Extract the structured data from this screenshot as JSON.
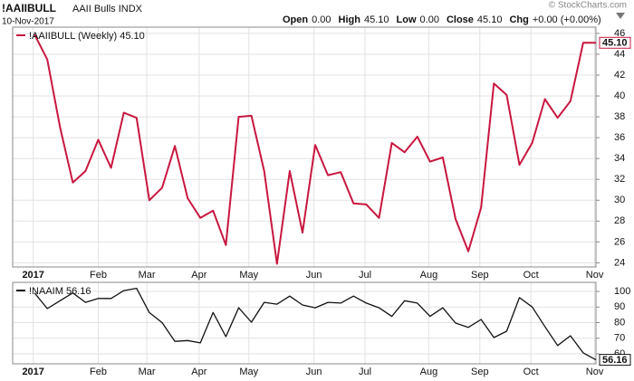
{
  "header": {
    "symbol": "!AAIIBULL",
    "name": "AAII Bulls INDX",
    "date": "10-Nov-2017",
    "watermark": "© StockCharts.com",
    "quote": [
      [
        "Open",
        "0.00"
      ],
      [
        "High",
        "45.10"
      ],
      [
        "Low",
        "0.00"
      ],
      [
        "Close",
        "45.10"
      ],
      [
        "Chg",
        "+0.00 (+0.00%)"
      ]
    ]
  },
  "chart_data": [
    {
      "type": "line",
      "xlim": [
        -1.71,
        44
      ],
      "ylim": [
        23.6,
        46.6
      ],
      "yticks": [
        24,
        26,
        28,
        30,
        32,
        34,
        36,
        38,
        40,
        42,
        44,
        46
      ],
      "grid": true,
      "xticks": [
        {
          "value": -0.1,
          "label": "2017"
        },
        {
          "value": 5,
          "label": "Feb"
        },
        {
          "value": 8.8,
          "label": "Mar"
        },
        {
          "value": 12.9,
          "label": "Apr"
        },
        {
          "value": 16.8,
          "label": "May"
        },
        {
          "value": 21.9,
          "label": "Jun"
        },
        {
          "value": 25.9,
          "label": "Jul"
        },
        {
          "value": 30.9,
          "label": "Aug"
        },
        {
          "value": 34.9,
          "label": "Sep"
        },
        {
          "value": 38.9,
          "label": "Oct"
        },
        {
          "value": 43.9,
          "label": "Nov"
        }
      ],
      "series": [
        {
          "name": "!AAIIBULL (Weekly) 45.10",
          "color": "#c8173f",
          "last_value_label": "45.10",
          "values": [
            45.9,
            43.5,
            37,
            31.7,
            32.8,
            35.8,
            33.1,
            38.4,
            37.9,
            30,
            31.2,
            35.2,
            30.2,
            28.3,
            29,
            25.7,
            38,
            38.1,
            32.8,
            23.9,
            32.8,
            26.9,
            35.3,
            32.4,
            32.7,
            29.7,
            29.6,
            28.3,
            35.5,
            34.6,
            36.1,
            33.7,
            34.1,
            28.2,
            25.1,
            29.3,
            41.2,
            40.1,
            33.4,
            35.5,
            39.7,
            37.9,
            39.5,
            45.1,
            45.1
          ]
        }
      ]
    },
    {
      "type": "line",
      "xlim": [
        -1.71,
        44
      ],
      "ylim": [
        53.6,
        105.8
      ],
      "yticks": [
        60,
        70,
        80,
        90,
        100
      ],
      "grid": true,
      "xticks": [
        {
          "value": -0.1,
          "label": "2017"
        },
        {
          "value": 5,
          "label": "Feb"
        },
        {
          "value": 8.8,
          "label": "Mar"
        },
        {
          "value": 12.9,
          "label": "Apr"
        },
        {
          "value": 16.8,
          "label": "May"
        },
        {
          "value": 21.9,
          "label": "Jun"
        },
        {
          "value": 25.9,
          "label": "Jul"
        },
        {
          "value": 30.9,
          "label": "Aug"
        },
        {
          "value": 34.9,
          "label": "Sep"
        },
        {
          "value": 38.9,
          "label": "Oct"
        },
        {
          "value": 43.9,
          "label": "Nov"
        }
      ],
      "series": [
        {
          "name": "!NAAIM 56.16",
          "color": "#111111",
          "last_value_label": "56.16",
          "values": [
            99,
            89,
            94,
            99,
            93,
            95.5,
            95.5,
            100.5,
            102,
            86.4,
            80,
            68,
            68.5,
            67,
            86.5,
            71,
            89.5,
            80.3,
            93,
            91.8,
            97,
            91.3,
            89.5,
            93,
            92.5,
            97,
            92.5,
            89.5,
            84,
            94,
            92.5,
            84,
            89.5,
            79.7,
            77,
            82,
            70.4,
            74.5,
            96,
            90,
            77.5,
            65.3,
            71.6,
            60.6,
            56.16
          ]
        }
      ]
    }
  ]
}
